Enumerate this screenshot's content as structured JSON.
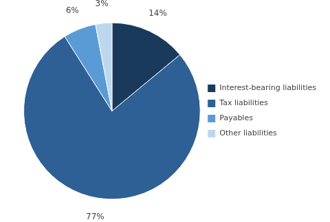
{
  "chart_data": {
    "type": "pie",
    "categories": [
      "Interest-bearing liabilities",
      "Tax liabilities",
      "Payables",
      "Other liabilities"
    ],
    "values": [
      14,
      77,
      6,
      3
    ],
    "value_labels": [
      "14%",
      "77%",
      "6%",
      "3%"
    ],
    "colors": [
      "#1a3a5c",
      "#2e6096",
      "#5b9bd5",
      "#bdd7ee"
    ],
    "data_labels": true,
    "legend": "right"
  }
}
